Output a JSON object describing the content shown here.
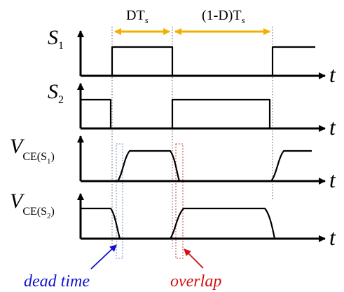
{
  "labels": {
    "s1": {
      "main": "S",
      "sub": "1"
    },
    "s2": {
      "main": "S",
      "sub": "2"
    },
    "vce1": {
      "main": "V",
      "sub": "CE(S",
      "subsub": "1",
      "close": ")"
    },
    "vce2": {
      "main": "V",
      "sub": "CE(S",
      "subsub": "2",
      "close": ")"
    },
    "t": "t"
  },
  "dimensions": {
    "dt": {
      "text": "DT",
      "sub": "s"
    },
    "one_minus_d": {
      "text": "(1-D)T",
      "sub": "s"
    }
  },
  "annotations": {
    "dead_time": {
      "text": "dead time",
      "color": "#1010d0"
    },
    "overlap": {
      "text": "overlap",
      "color": "#d01010"
    }
  },
  "colors": {
    "dimension_arrow": "#f2b100",
    "dead_time_box": "#6a8fc8",
    "overlap_box": "#d04040"
  }
}
